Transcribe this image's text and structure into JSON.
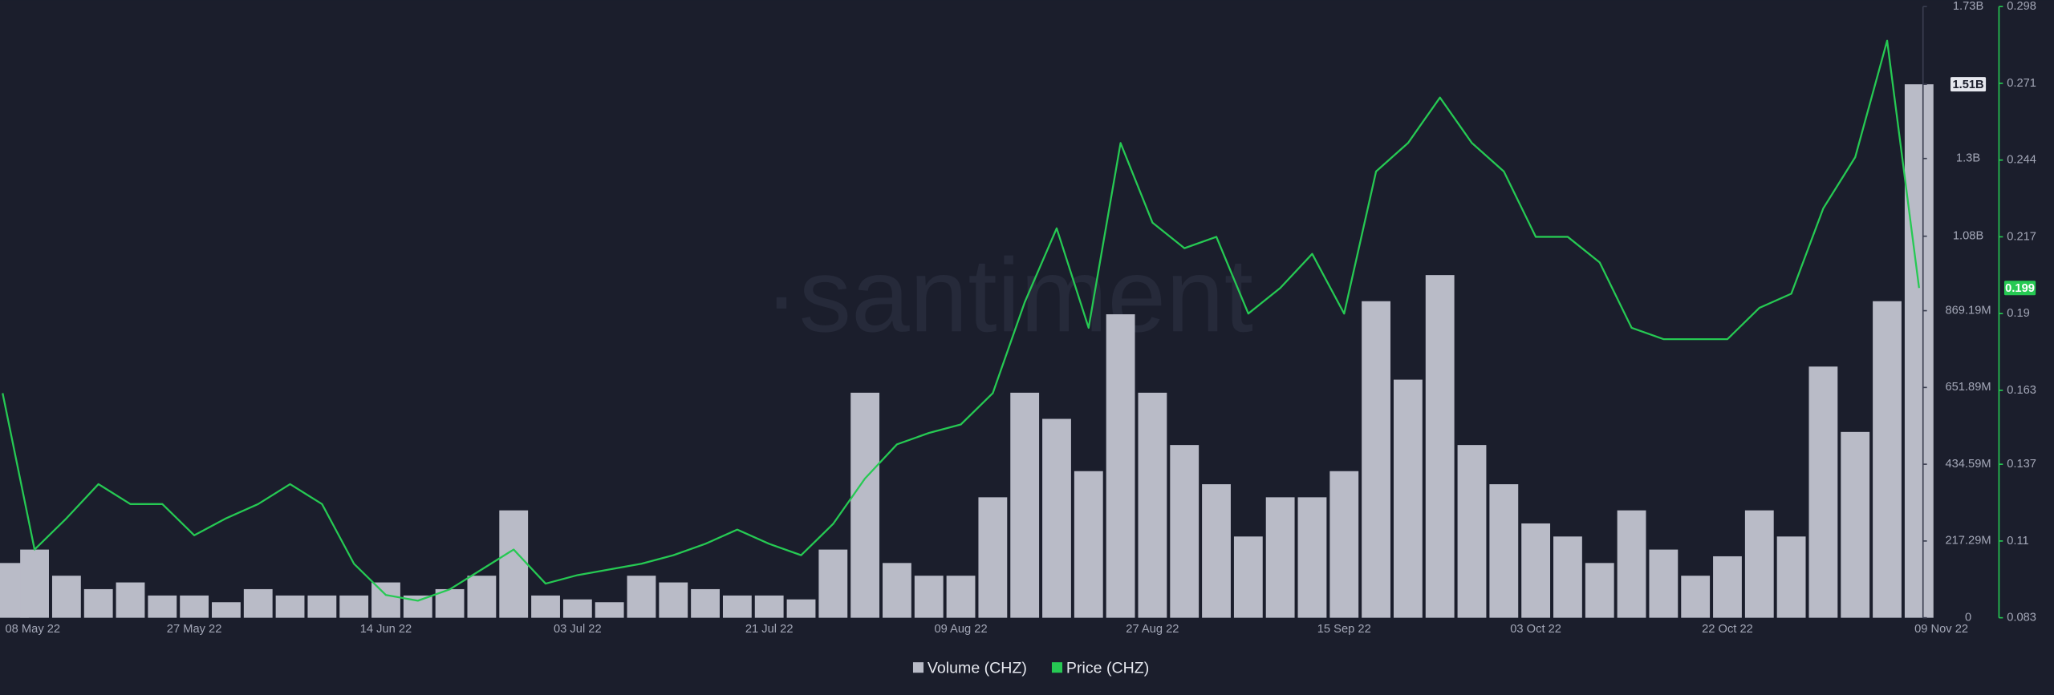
{
  "chart_data": {
    "type": "combo",
    "watermark": "·santiment",
    "categories": [
      "08 May 22",
      null,
      null,
      null,
      null,
      null,
      "27 May 22",
      null,
      null,
      null,
      null,
      null,
      "14 Jun 22",
      null,
      null,
      null,
      null,
      null,
      "03 Jul 22",
      null,
      null,
      null,
      null,
      null,
      "21 Jul 22",
      null,
      null,
      null,
      null,
      null,
      "09 Aug 22",
      null,
      null,
      null,
      null,
      null,
      "27 Aug 22",
      null,
      null,
      null,
      null,
      null,
      "15 Sep 22",
      null,
      null,
      null,
      null,
      null,
      "03 Oct 22",
      null,
      null,
      null,
      null,
      null,
      "22 Oct 22",
      null,
      null,
      null,
      null,
      null,
      "09 Nov 22"
    ],
    "series": [
      {
        "name": "Volume (CHZ)",
        "type": "bar",
        "color": "#b9bbc7",
        "axis": "y",
        "values": [
          155000000,
          193000000,
          119000000,
          81000000,
          100000000,
          63000000,
          63000000,
          44000000,
          81000000,
          63000000,
          63000000,
          63000000,
          100000000,
          63000000,
          81000000,
          119000000,
          304000000,
          63000000,
          52000000,
          44000000,
          119000000,
          100000000,
          81000000,
          63000000,
          63000000,
          52000000,
          193000000,
          637000000,
          155000000,
          119000000,
          119000000,
          341000000,
          637000000,
          563000000,
          415000000,
          859000000,
          637000000,
          489000000,
          378000000,
          230000000,
          341000000,
          341000000,
          415000000,
          896000000,
          674000000,
          970000000,
          489000000,
          378000000,
          267000000,
          230000000,
          155000000,
          304000000,
          193000000,
          119000000,
          174000000,
          304000000,
          230000000,
          711000000,
          526000000,
          896000000,
          1510000000
        ]
      },
      {
        "name": "Price (CHZ)",
        "type": "line",
        "color": "#26c953",
        "axis": "y2",
        "values": [
          0.162,
          0.107,
          0.118,
          0.13,
          0.123,
          0.123,
          0.112,
          0.118,
          0.123,
          0.13,
          0.123,
          0.102,
          0.091,
          0.089,
          0.093,
          0.1,
          0.107,
          0.095,
          0.098,
          0.1,
          0.102,
          0.105,
          0.109,
          0.114,
          0.109,
          0.105,
          0.116,
          0.132,
          0.144,
          0.148,
          0.151,
          0.162,
          0.194,
          0.22,
          0.185,
          0.25,
          0.222,
          0.213,
          0.217,
          0.19,
          0.199,
          0.211,
          0.19,
          0.24,
          0.25,
          0.266,
          0.25,
          0.24,
          0.217,
          0.217,
          0.208,
          0.185,
          0.181,
          0.181,
          0.181,
          0.192,
          0.197,
          0.227,
          0.245,
          0.286,
          0.199
        ]
      }
    ],
    "ylim": [
      0,
      1730000000
    ],
    "yticks": [
      0,
      {
        "value": 217290000,
        "label": "217.29M"
      },
      {
        "value": 434590000,
        "label": "434.59M"
      },
      {
        "value": 651890000,
        "label": "651.89M"
      },
      {
        "value": 869190000,
        "label": "869.19M"
      },
      {
        "value": 1080000000,
        "label": "1.08B"
      },
      {
        "value": 1300000000,
        "label": "1.3B"
      },
      {
        "value": 1510000000,
        "label": "1.51B"
      },
      {
        "value": 1730000000,
        "label": "1.73B"
      }
    ],
    "y2lim": [
      0.083,
      0.298
    ],
    "y2ticks": [
      0.083,
      0.11,
      0.137,
      0.163,
      0.19,
      0.217,
      0.244,
      0.271,
      0.298
    ],
    "highlight_ytick": 7,
    "grid": true
  }
}
